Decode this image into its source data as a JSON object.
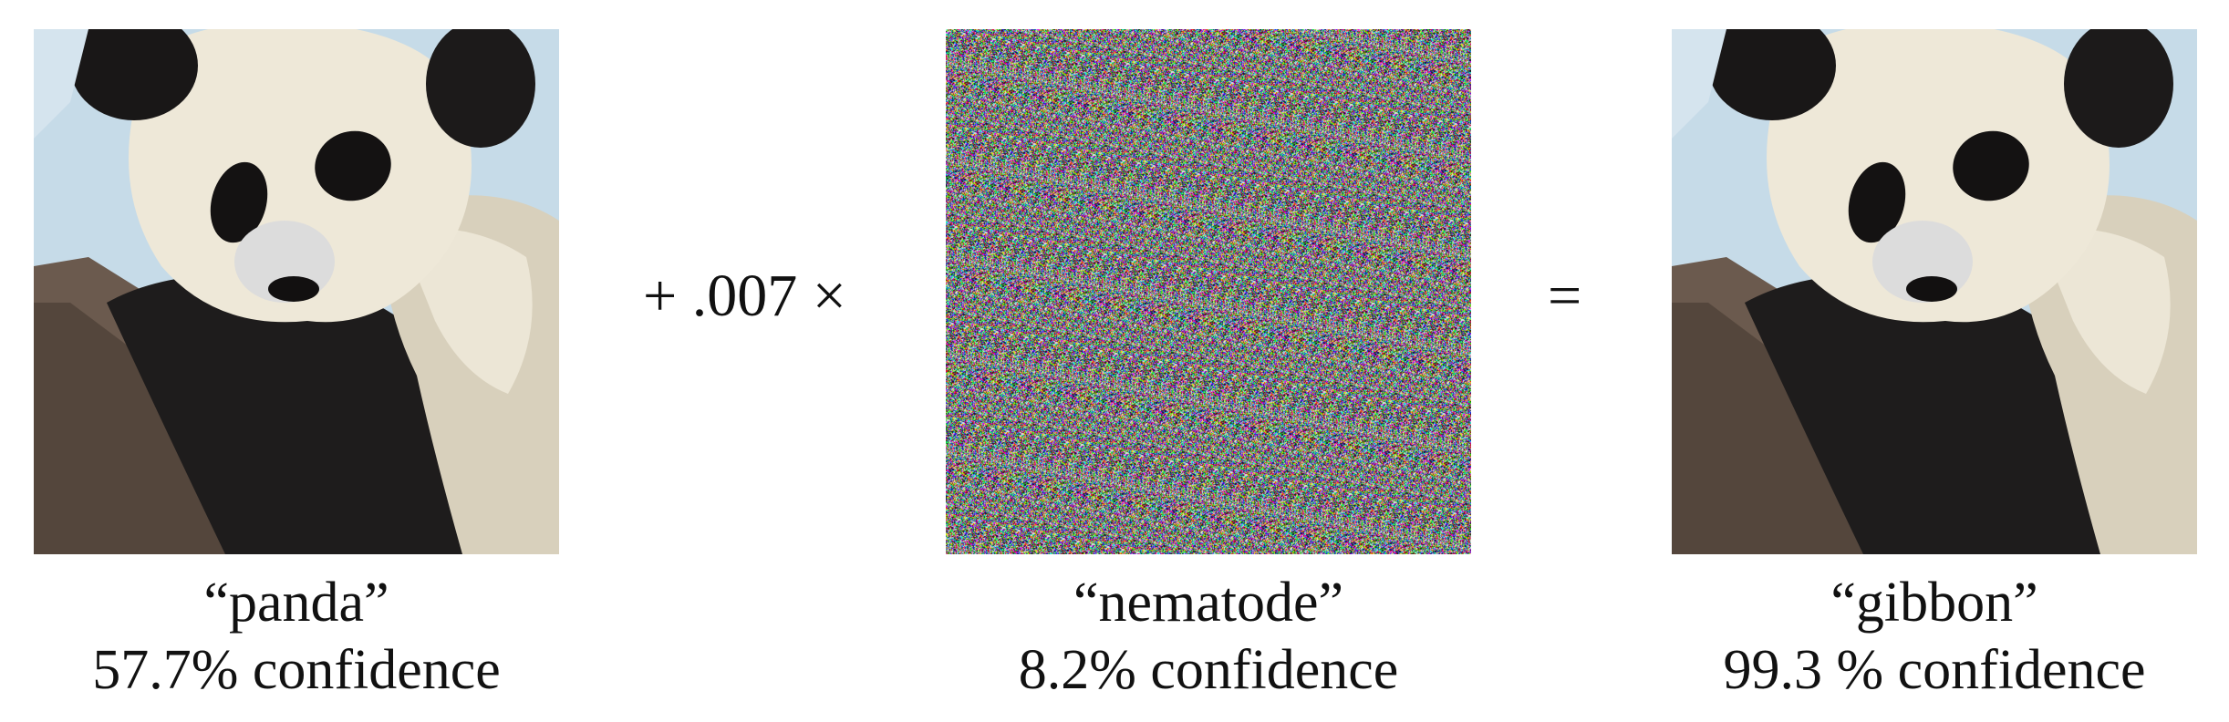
{
  "images": [
    {
      "image": "panda-photo",
      "label": "“panda”",
      "confidence": "57.7% confidence"
    },
    {
      "image": "perturbation-noise",
      "label": "“nematode”",
      "confidence": "8.2% confidence"
    },
    {
      "image": "panda-photo-perturbed",
      "label": "“gibbon”",
      "confidence": "99.3 % confidence"
    }
  ],
  "operators": {
    "plus": "+ .007 ×",
    "equals": "="
  }
}
